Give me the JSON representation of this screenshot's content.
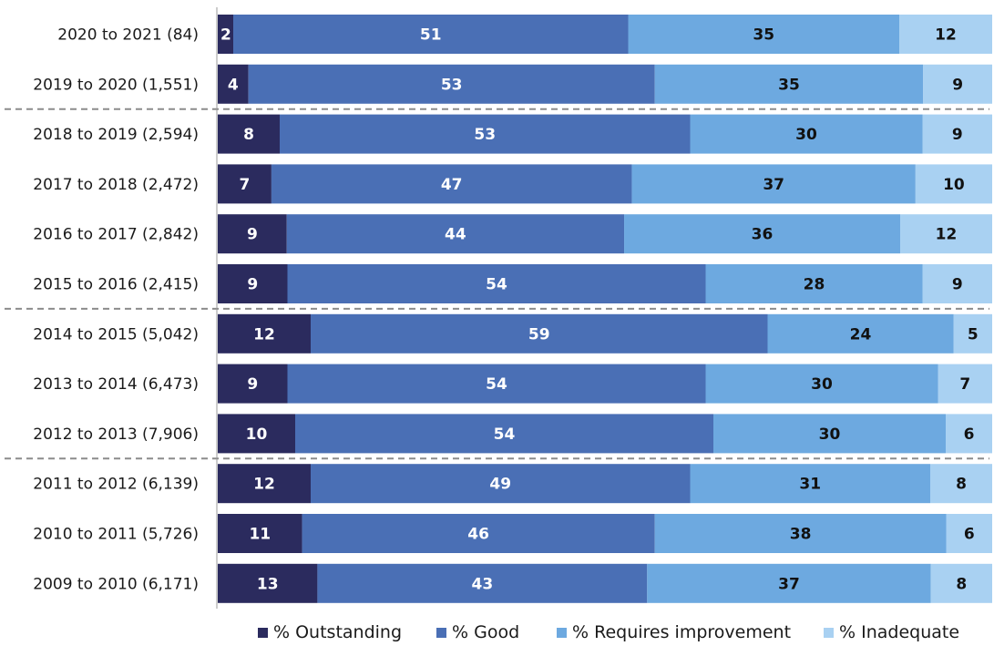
{
  "chart_data": {
    "type": "bar",
    "orientation": "horizontal",
    "stacked": true,
    "normalized_percent": true,
    "title": "",
    "xlabel": "",
    "ylabel": "",
    "xlim": [
      0,
      100
    ],
    "grid": false,
    "legend_position": "bottom",
    "categories": [
      "2020 to 2021 (84)",
      "2019 to 2020 (1,551)",
      "2018 to 2019 (2,594)",
      "2017 to 2018 (2,472)",
      "2016 to 2017 (2,842)",
      "2015 to 2016 (2,415)",
      "2014 to 2015 (5,042)",
      "2013 to 2014 (6,473)",
      "2012 to 2013 (7,906)",
      "2011 to 2012 (6,139)",
      "2010 to 2011 (5,726)",
      "2009 to 2010 (6,171)"
    ],
    "series": [
      {
        "name": "% Outstanding",
        "color": "#2b2b5e",
        "label_color": "#ffffff",
        "values": [
          2,
          4,
          8,
          7,
          9,
          9,
          12,
          9,
          10,
          12,
          11,
          13
        ]
      },
      {
        "name": "% Good",
        "color": "#4a6fb5",
        "label_color": "#ffffff",
        "values": [
          51,
          53,
          53,
          47,
          44,
          54,
          59,
          54,
          54,
          49,
          46,
          43
        ]
      },
      {
        "name": "% Requires improvement",
        "color": "#6da9e0",
        "label_color": "#111111",
        "values": [
          35,
          35,
          30,
          37,
          36,
          28,
          24,
          30,
          30,
          31,
          38,
          37
        ]
      },
      {
        "name": "% Inadequate",
        "color": "#a9d1f2",
        "label_color": "#111111",
        "values": [
          12,
          9,
          9,
          10,
          12,
          9,
          5,
          7,
          6,
          8,
          6,
          8
        ]
      }
    ],
    "dividers_after_rows": [
      1,
      5,
      8
    ]
  }
}
